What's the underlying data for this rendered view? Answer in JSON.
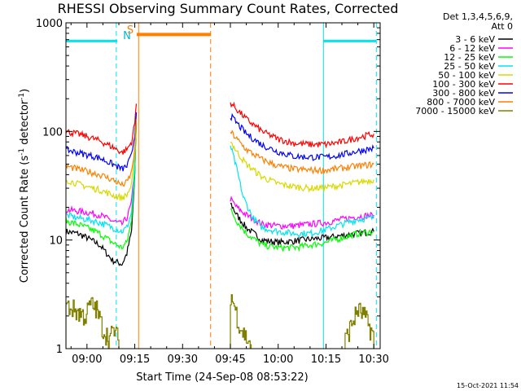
{
  "chart_data": {
    "type": "line",
    "title": "RHESSI Observing Summary Count Rates, Corrected",
    "xlabel": "Start Time (24-Sep-08 08:53:22)",
    "ylabel_main": "Corrected Count Rate (s",
    "ylabel_sup1": "-1",
    "ylabel_mid": " detector",
    "ylabel_sup2": "-1",
    "ylabel_end": ")",
    "ylog": true,
    "ylim": [
      1,
      1000
    ],
    "xlim_min": [
      533.4,
      632
    ],
    "xticks": [
      {
        "value": 540,
        "label": "09:00"
      },
      {
        "value": 555,
        "label": "09:15"
      },
      {
        "value": 570,
        "label": "09:30"
      },
      {
        "value": 585,
        "label": "09:45"
      },
      {
        "value": 600,
        "label": "10:00"
      },
      {
        "value": 615,
        "label": "10:15"
      },
      {
        "value": 630,
        "label": "10:30"
      }
    ],
    "yticks": [
      {
        "value": 1,
        "label": "1"
      },
      {
        "value": 10,
        "label": "10"
      },
      {
        "value": 100,
        "label": "100"
      },
      {
        "value": 1000,
        "label": "1000"
      }
    ],
    "legend_header": [
      "Det 1,3,4,5,6,9,",
      "Att 0"
    ],
    "legend_position": "top-right",
    "timestamp": "15-Oct-2021 11:54",
    "night_label": "N",
    "saa_label": "S",
    "markers": {
      "saa_bar": {
        "start": 555.6,
        "end": 578.8,
        "value": 780,
        "color": "#ff7f00"
      },
      "night_bars": [
        {
          "start": 533.4,
          "end": 549.5,
          "value": 680,
          "color": "#00e5ee"
        },
        {
          "start": 614.2,
          "end": 630.8,
          "value": 680,
          "color": "#00e5ee"
        }
      ],
      "night_solid": [
        614.2
      ],
      "night_dashed": [
        549.2,
        630.8
      ],
      "saa_solid": [
        556.2
      ],
      "saa_dashed": [
        578.8
      ]
    },
    "series": [
      {
        "name": "3 - 6 keV",
        "color": "#000000",
        "segments": [
          [
            [
              533.4,
              12
            ],
            [
              537,
              11.5
            ],
            [
              540,
              10.5
            ],
            [
              544,
              9
            ],
            [
              548,
              6.5
            ],
            [
              551,
              6
            ],
            [
              552.5,
              7.5
            ],
            [
              554,
              12
            ],
            [
              555,
              40
            ],
            [
              555.5,
              120
            ]
          ],
          [
            [
              585,
              22
            ],
            [
              587,
              17
            ],
            [
              590,
              13
            ],
            [
              595,
              10
            ],
            [
              600,
              9.5
            ],
            [
              605,
              9.8
            ],
            [
              610,
              10.2
            ],
            [
              615,
              10.5
            ],
            [
              620,
              11
            ],
            [
              625,
              11.5
            ],
            [
              630,
              12
            ]
          ]
        ]
      },
      {
        "name": "6 - 12 keV",
        "color": "#ff00ff",
        "segments": [
          [
            [
              533.4,
              19
            ],
            [
              537,
              18.5
            ],
            [
              540,
              18
            ],
            [
              544,
              17
            ],
            [
              548,
              15
            ],
            [
              551,
              14
            ],
            [
              552.5,
              16
            ],
            [
              554,
              22
            ],
            [
              555,
              50
            ],
            [
              555.5,
              150
            ]
          ],
          [
            [
              585,
              24
            ],
            [
              587,
              20
            ],
            [
              590,
              17
            ],
            [
              595,
              14
            ],
            [
              600,
              13.5
            ],
            [
              605,
              13.5
            ],
            [
              610,
              14
            ],
            [
              615,
              14.5
            ],
            [
              620,
              15.5
            ],
            [
              625,
              16.5
            ],
            [
              630,
              17
            ]
          ]
        ]
      },
      {
        "name": "12 - 25 keV",
        "color": "#00ff00",
        "segments": [
          [
            [
              533.4,
              15
            ],
            [
              537,
              14
            ],
            [
              540,
              13
            ],
            [
              544,
              11.5
            ],
            [
              548,
              9.5
            ],
            [
              551,
              8.5
            ],
            [
              552.5,
              9.5
            ],
            [
              554,
              15
            ],
            [
              555,
              45
            ],
            [
              555.5,
              130
            ]
          ],
          [
            [
              585,
              19
            ],
            [
              587,
              15
            ],
            [
              590,
              11.5
            ],
            [
              595,
              9
            ],
            [
              600,
              8.5
            ],
            [
              605,
              8.5
            ],
            [
              610,
              9
            ],
            [
              615,
              9.5
            ],
            [
              620,
              10.5
            ],
            [
              625,
              11.5
            ],
            [
              630,
              12
            ]
          ]
        ]
      },
      {
        "name": "25 - 50 keV",
        "color": "#00e5ee",
        "segments": [
          [
            [
              533.4,
              17
            ],
            [
              537,
              16
            ],
            [
              540,
              15.5
            ],
            [
              544,
              14.5
            ],
            [
              548,
              13
            ],
            [
              551,
              12
            ],
            [
              552.5,
              13
            ],
            [
              554,
              18
            ],
            [
              555,
              50
            ],
            [
              555.5,
              140
            ]
          ],
          [
            [
              585,
              75
            ],
            [
              587,
              45
            ],
            [
              589,
              25
            ],
            [
              592,
              16
            ],
            [
              595,
              13
            ],
            [
              600,
              12
            ],
            [
              605,
              11.5
            ],
            [
              610,
              11.5
            ],
            [
              615,
              12.5
            ],
            [
              620,
              14
            ],
            [
              625,
              15.5
            ],
            [
              630,
              16
            ]
          ]
        ]
      },
      {
        "name": "50 - 100 keV",
        "color": "#d8d800",
        "segments": [
          [
            [
              533.4,
              36
            ],
            [
              537,
              33
            ],
            [
              540,
              31
            ],
            [
              544,
              29
            ],
            [
              548,
              26
            ],
            [
              551,
              24.5
            ],
            [
              552.5,
              26
            ],
            [
              554,
              32
            ],
            [
              555,
              60
            ],
            [
              555.5,
              140
            ]
          ],
          [
            [
              585,
              82
            ],
            [
              587,
              65
            ],
            [
              590,
              50
            ],
            [
              595,
              38
            ],
            [
              600,
              33
            ],
            [
              605,
              31
            ],
            [
              610,
              30
            ],
            [
              615,
              30.5
            ],
            [
              620,
              32
            ],
            [
              625,
              34
            ],
            [
              630,
              36
            ]
          ]
        ]
      },
      {
        "name": "100 - 300 keV",
        "color": "#ff0000",
        "segments": [
          [
            [
              533.4,
              100
            ],
            [
              537,
              95
            ],
            [
              540,
              90
            ],
            [
              544,
              82
            ],
            [
              548,
              72
            ],
            [
              551,
              64
            ],
            [
              552.5,
              68
            ],
            [
              554,
              80
            ],
            [
              555,
              120
            ],
            [
              555.5,
              180
            ]
          ],
          [
            [
              585,
              185
            ],
            [
              587,
              160
            ],
            [
              590,
              130
            ],
            [
              595,
              100
            ],
            [
              600,
              85
            ],
            [
              605,
              78
            ],
            [
              610,
              76
            ],
            [
              615,
              76
            ],
            [
              620,
              80
            ],
            [
              625,
              88
            ],
            [
              630,
              95
            ]
          ]
        ]
      },
      {
        "name": "300 - 800 keV",
        "color": "#0000ff",
        "segments": [
          [
            [
              533.4,
              68
            ],
            [
              537,
              64
            ],
            [
              540,
              61
            ],
            [
              544,
              57
            ],
            [
              548,
              50
            ],
            [
              551,
              45
            ],
            [
              552.5,
              48
            ],
            [
              554,
              60
            ],
            [
              555,
              95
            ],
            [
              555.5,
              150
            ]
          ],
          [
            [
              585,
              140
            ],
            [
              587,
              120
            ],
            [
              590,
              95
            ],
            [
              595,
              75
            ],
            [
              600,
              65
            ],
            [
              605,
              59
            ],
            [
              610,
              58
            ],
            [
              615,
              58
            ],
            [
              620,
              61
            ],
            [
              625,
              66
            ],
            [
              630,
              70
            ]
          ]
        ]
      },
      {
        "name": "800 - 7000 keV",
        "color": "#ff7f00",
        "segments": [
          [
            [
              533.4,
              48
            ],
            [
              537,
              45
            ],
            [
              540,
              43
            ],
            [
              544,
              40
            ],
            [
              548,
              36
            ],
            [
              551,
              32
            ],
            [
              552.5,
              34
            ],
            [
              554,
              42
            ],
            [
              555,
              70
            ],
            [
              555.5,
              130
            ]
          ],
          [
            [
              585,
              100
            ],
            [
              587,
              85
            ],
            [
              590,
              68
            ],
            [
              595,
              55
            ],
            [
              600,
              48
            ],
            [
              605,
              45
            ],
            [
              610,
              44
            ],
            [
              615,
              44
            ],
            [
              620,
              46
            ],
            [
              625,
              48
            ],
            [
              630,
              50
            ]
          ]
        ]
      },
      {
        "name": "7000 - 15000 keV",
        "color": "#808000",
        "segments": [
          [
            [
              533.4,
              2.5
            ],
            [
              536,
              2.3
            ],
            [
              538,
              2.1
            ],
            [
              539.5,
              2.0
            ],
            [
              541,
              2.6
            ],
            [
              543,
              2.3
            ],
            [
              545,
              1.5
            ],
            [
              547,
              1.25
            ],
            [
              548.5,
              1.5
            ],
            [
              550,
              1.15
            ]
          ],
          [
            [
              585,
              3.2
            ],
            [
              586.5,
              2.3
            ],
            [
              588,
              1.6
            ],
            [
              590,
              1.25
            ],
            [
              591.5,
              1.1
            ]
          ],
          [
            [
              621,
              1.2
            ],
            [
              623,
              1.7
            ],
            [
              625,
              2.3
            ],
            [
              627,
              2.0
            ],
            [
              628.5,
              1.6
            ],
            [
              630,
              1.3
            ]
          ]
        ]
      }
    ]
  }
}
